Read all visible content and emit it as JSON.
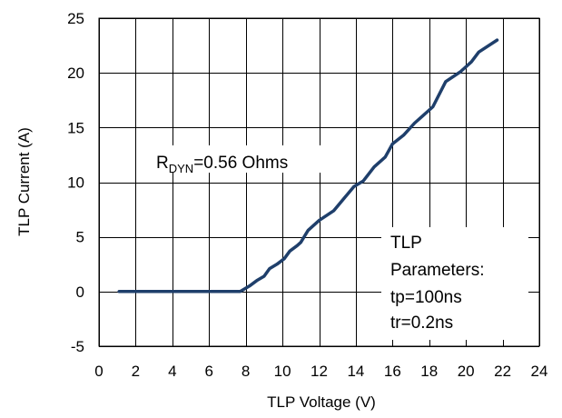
{
  "chart_data": {
    "type": "line",
    "xlabel": "TLP Voltage (V)",
    "ylabel": "TLP Current (A)",
    "xlim": [
      0,
      24
    ],
    "ylim": [
      -5,
      25
    ],
    "x_ticks": [
      0,
      2,
      4,
      6,
      8,
      10,
      12,
      14,
      16,
      18,
      20,
      22,
      24
    ],
    "y_ticks": [
      -5,
      0,
      5,
      10,
      15,
      20,
      25
    ],
    "grid": true,
    "line_color": "#1f3f6b",
    "series": [
      {
        "points": [
          [
            1.1,
            0
          ],
          [
            7.7,
            0
          ],
          [
            8.2,
            0.5
          ],
          [
            8.6,
            1.0
          ],
          [
            9.0,
            1.4
          ],
          [
            9.3,
            2.1
          ],
          [
            9.7,
            2.5
          ],
          [
            10.1,
            3.0
          ],
          [
            10.4,
            3.7
          ],
          [
            10.8,
            4.2
          ],
          [
            11.0,
            4.5
          ],
          [
            11.4,
            5.6
          ],
          [
            12.0,
            6.5
          ],
          [
            12.8,
            7.4
          ],
          [
            13.4,
            8.6
          ],
          [
            13.9,
            9.6
          ],
          [
            14.4,
            10.1
          ],
          [
            15.0,
            11.4
          ],
          [
            15.6,
            12.3
          ],
          [
            16.0,
            13.5
          ],
          [
            16.6,
            14.3
          ],
          [
            17.2,
            15.4
          ],
          [
            17.6,
            16.0
          ],
          [
            18.2,
            16.9
          ],
          [
            18.9,
            19.2
          ],
          [
            19.7,
            20.1
          ],
          [
            20.3,
            21.0
          ],
          [
            20.7,
            21.9
          ],
          [
            21.7,
            23.0
          ]
        ]
      }
    ],
    "annotations": {
      "rdyn_main": "R",
      "rdyn_sub": "DYN",
      "rdyn_value": "=0.56  Ohms",
      "params_title": "TLP",
      "params_label": "Parameters:",
      "params_tp": "tp=100ns",
      "params_tr": "tr=0.2ns"
    }
  }
}
